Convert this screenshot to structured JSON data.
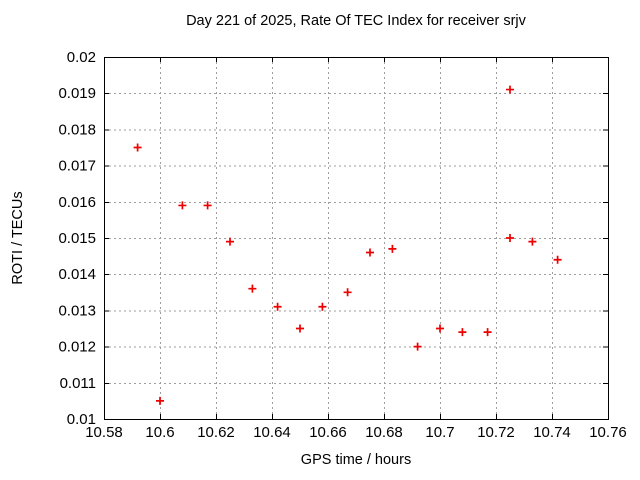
{
  "window": {
    "background_color": "#ffffff",
    "text_color": "#000000"
  },
  "chart_data": {
    "type": "scatter",
    "title": "Day 221 of 2025, Rate Of TEC Index for receiver srjv",
    "xlabel": "GPS time / hours",
    "ylabel": "ROTI / TECUs",
    "xlim": [
      10.58,
      10.76
    ],
    "ylim": [
      0.01,
      0.02
    ],
    "xticks": [
      10.58,
      10.6,
      10.62,
      10.64,
      10.66,
      10.68,
      10.7,
      10.72,
      10.74,
      10.76
    ],
    "xtick_labels": [
      "10.58",
      "10.6",
      "10.62",
      "10.64",
      "10.66",
      "10.68",
      "10.7",
      "10.72",
      "10.74",
      "10.76"
    ],
    "yticks": [
      0.01,
      0.011,
      0.012,
      0.013,
      0.014,
      0.015,
      0.016,
      0.017,
      0.018,
      0.019,
      0.02
    ],
    "ytick_labels": [
      "0.01",
      "0.011",
      "0.012",
      "0.013",
      "0.014",
      "0.015",
      "0.016",
      "0.017",
      "0.018",
      "0.019",
      "0.02"
    ],
    "grid": true,
    "legend": "none",
    "marker": "plus",
    "marker_color": "#ee0000",
    "grid_color": "#9e9e9e",
    "frame_color": "#000000",
    "series": [
      {
        "name": "roti",
        "points": [
          [
            10.592,
            0.0175
          ],
          [
            10.6,
            0.0105
          ],
          [
            10.608,
            0.0159
          ],
          [
            10.617,
            0.0159
          ],
          [
            10.625,
            0.0149
          ],
          [
            10.633,
            0.0136
          ],
          [
            10.642,
            0.0131
          ],
          [
            10.65,
            0.0125
          ],
          [
            10.658,
            0.0131
          ],
          [
            10.667,
            0.0135
          ],
          [
            10.675,
            0.0146
          ],
          [
            10.683,
            0.0147
          ],
          [
            10.692,
            0.012
          ],
          [
            10.7,
            0.0125
          ],
          [
            10.708,
            0.0124
          ],
          [
            10.717,
            0.0124
          ],
          [
            10.725,
            0.0191
          ],
          [
            10.725,
            0.015
          ],
          [
            10.733,
            0.0149
          ],
          [
            10.742,
            0.0144
          ]
        ]
      }
    ]
  }
}
